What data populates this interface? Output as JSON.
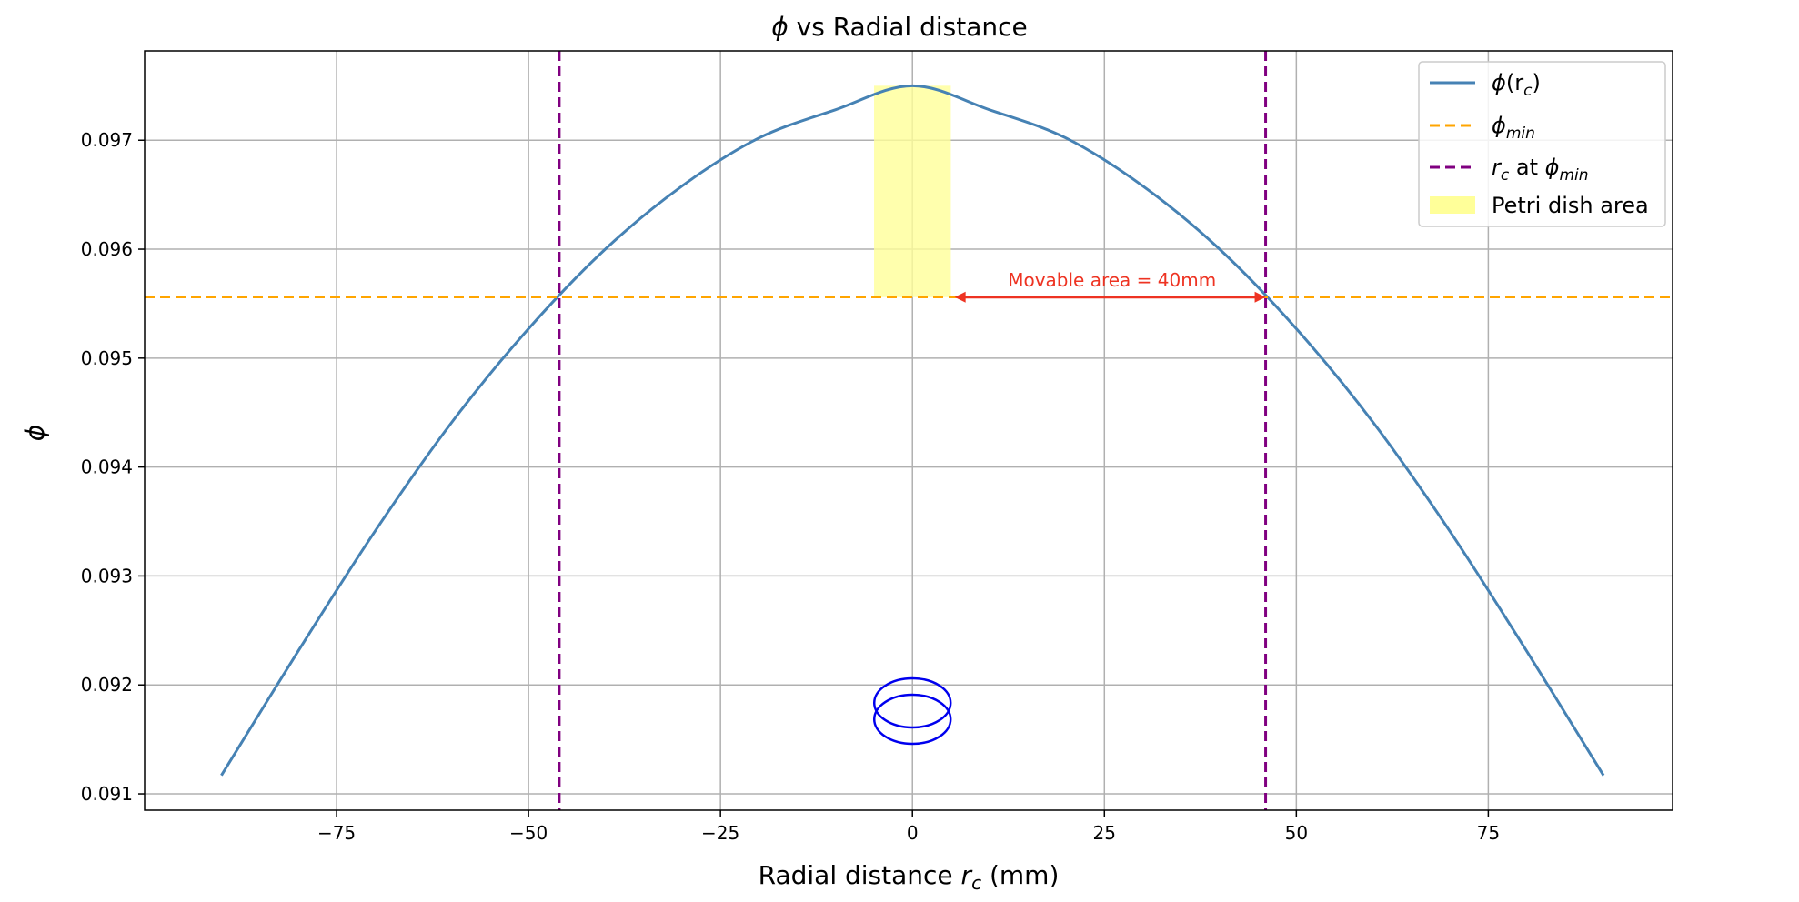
{
  "chart_data": {
    "type": "line",
    "title_main": "ϕ",
    "title_rest": " vs Radial distance",
    "xlabel_main": "Radial distance ",
    "xlabel_var": "r",
    "xlabel_sub": "c",
    "xlabel_unit": " (mm)",
    "ylabel": "ϕ",
    "xlim": [
      -100,
      99
    ],
    "ylim": [
      0.09085,
      0.09782
    ],
    "xticks": [
      -75,
      -50,
      -25,
      0,
      25,
      50,
      75
    ],
    "xtick_labels": [
      "−75",
      "−50",
      "−25",
      "0",
      "25",
      "50",
      "75"
    ],
    "yticks": [
      0.091,
      0.092,
      0.093,
      0.094,
      0.095,
      0.096,
      0.097
    ],
    "ytick_labels": [
      "0.091",
      "0.092",
      "0.093",
      "0.094",
      "0.095",
      "0.096",
      "0.097"
    ],
    "grid": true,
    "legend_position": "top-right",
    "colors": {
      "curve": "#4682b4",
      "phi_min": "#ffa500",
      "rc_lines": "#800080",
      "petri": "#ffff99",
      "arrow": "#ee3322",
      "dish": "#0000ee",
      "grid": "#b0b0b0"
    },
    "series": [
      {
        "name": "ϕ(rc)",
        "x": [
          -90,
          -80,
          -70,
          -60,
          -50,
          -40,
          -30,
          -20,
          -10,
          0,
          10,
          20,
          30,
          40,
          50,
          60,
          70,
          80,
          90
        ],
        "y": [
          0.09117,
          0.09231,
          0.09341,
          0.09441,
          0.09527,
          0.096,
          0.09658,
          0.09702,
          0.09728,
          0.0975,
          0.09728,
          0.09702,
          0.09658,
          0.096,
          0.09527,
          0.09441,
          0.09341,
          0.09231,
          0.09117
        ]
      }
    ],
    "phi_min": 0.09556,
    "rc_at_phi_min": [
      -46,
      46
    ],
    "petri_dish_area": {
      "x_range": [
        -5,
        5
      ],
      "y_range": [
        0.09556,
        0.0975
      ]
    },
    "petri_dish_icon": {
      "x_center": 0,
      "y_center": 0.09176
    },
    "annotation": {
      "text": "Movable area = 40mm",
      "arrow_from_x": 5.5,
      "arrow_to_x": 46,
      "y": 0.09556,
      "text_x": 26,
      "text_y": 0.09566
    },
    "legend": [
      {
        "kind": "line",
        "label_var": "ϕ",
        "label_tail": "(r",
        "label_sub": "c",
        "label_end": ")"
      },
      {
        "kind": "dashed-orange",
        "label_var": "ϕ",
        "label_sub": "min"
      },
      {
        "kind": "dashed-purple",
        "label_var": "r",
        "label_sub": "c",
        "label_mid": " at ",
        "label_var2": "ϕ",
        "label_sub2": "min"
      },
      {
        "kind": "patch",
        "label": "Petri dish area"
      }
    ]
  }
}
